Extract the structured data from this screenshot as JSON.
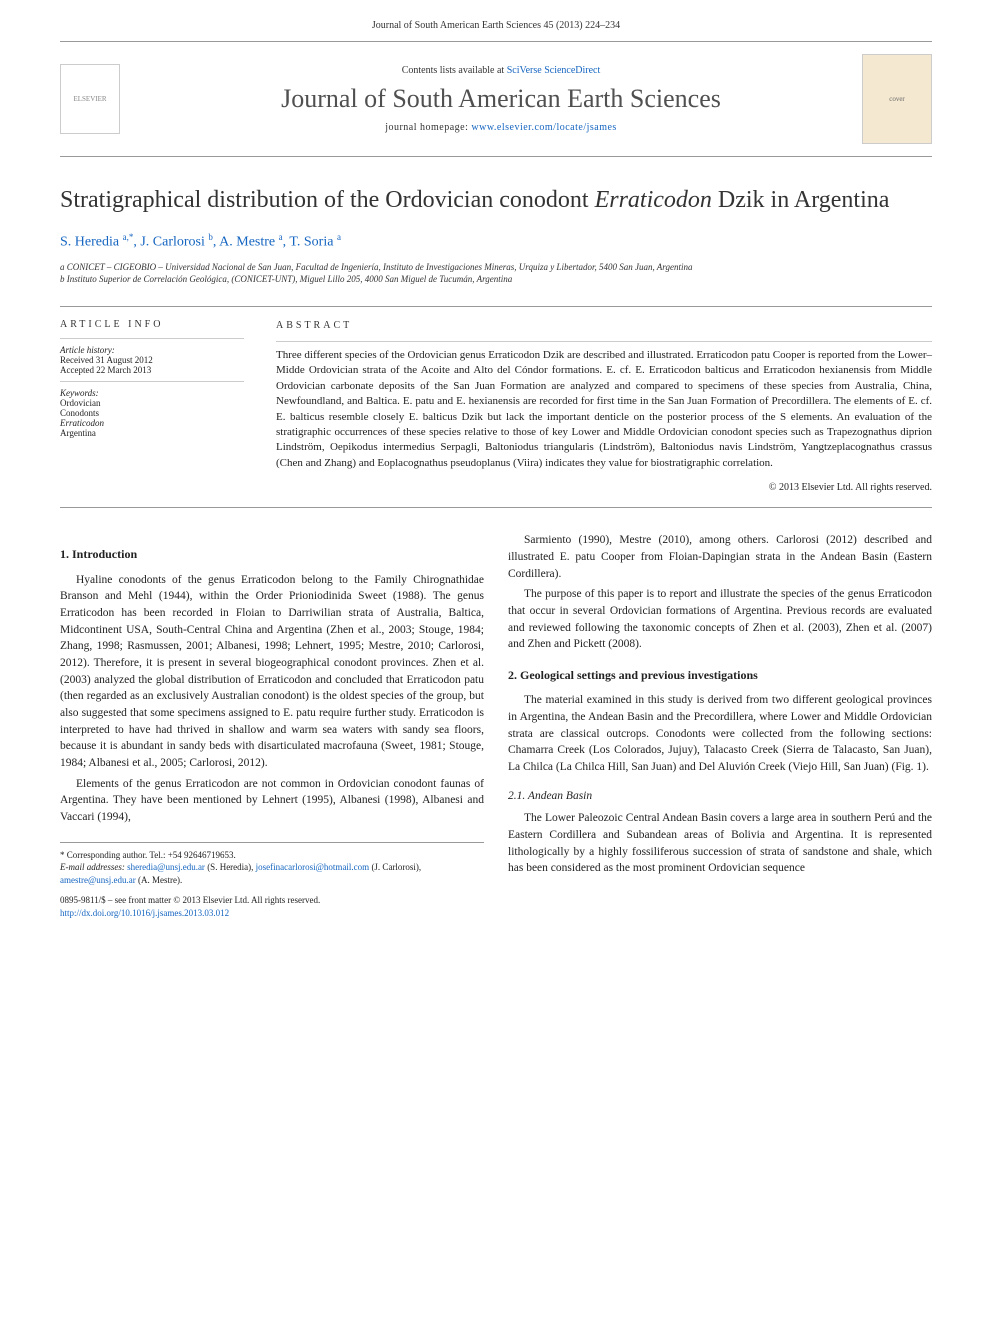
{
  "header": {
    "citation": "Journal of South American Earth Sciences 45 (2013) 224–234",
    "contents_prefix": "Contents lists available at ",
    "contents_link": "SciVerse ScienceDirect",
    "journal_title": "Journal of South American Earth Sciences",
    "homepage_prefix": "journal homepage: ",
    "homepage_url": "www.elsevier.com/locate/jsames",
    "publisher_logo_text": "ELSEVIER",
    "cover_text": "cover"
  },
  "title": {
    "pre": "Stratigraphical distribution of the Ordovician conodont ",
    "italic": "Erraticodon",
    "post": " Dzik in Argentina"
  },
  "authors_html": "S. Heredia <sup>a,*</sup>, J. Carlorosi <sup>b</sup>, A. Mestre <sup>a</sup>, T. Soria <sup>a</sup>",
  "affiliations": {
    "a": "a CONICET – CIGEOBIO – Universidad Nacional de San Juan, Facultad de Ingeniería, Instituto de Investigaciones Mineras, Urquiza y Libertador, 5400 San Juan, Argentina",
    "b": "b Instituto Superior de Correlación Geológica, (CONICET-UNT), Miguel Lillo 205, 4000 San Miguel de Tucumán, Argentina"
  },
  "article_info": {
    "label": "ARTICLE INFO",
    "history_label": "Article history:",
    "received": "Received 31 August 2012",
    "accepted": "Accepted 22 March 2013",
    "keywords_label": "Keywords:",
    "keywords": [
      "Ordovician",
      "Conodonts",
      "Erraticodon",
      "Argentina"
    ]
  },
  "abstract": {
    "label": "ABSTRACT",
    "text": "Three different species of the Ordovician genus Erraticodon Dzik are described and illustrated. Erraticodon patu Cooper is reported from the Lower–Midde Ordovician strata of the Acoite and Alto del Cóndor formations. E. cf. E. Erraticodon balticus and Erraticodon hexianensis from Middle Ordovician carbonate deposits of the San Juan Formation are analyzed and compared to specimens of these species from Australia, China, Newfoundland, and Baltica. E. patu and E. hexianensis are recorded for first time in the San Juan Formation of Precordillera. The elements of E. cf. E. balticus resemble closely E. balticus Dzik but lack the important denticle on the posterior process of the S elements. An evaluation of the stratigraphic occurrences of these species relative to those of key Lower and Middle Ordovician conodont species such as Trapezognathus diprion Lindström, Oepikodus intermedius Serpagli, Baltoniodus triangularis (Lindström), Baltoniodus navis Lindström, Yangtzeplacognathus crassus (Chen and Zhang) and Eoplacognathus pseudoplanus (Viira) indicates they value for biostratigraphic correlation.",
    "copyright": "© 2013 Elsevier Ltd. All rights reserved."
  },
  "body": {
    "intro_heading": "1. Introduction",
    "intro_p1": "Hyaline conodonts of the genus Erraticodon belong to the Family Chirognathidae Branson and Mehl (1944), within the Order Prioniodinida Sweet (1988). The genus Erraticodon has been recorded in Floian to Darriwilian strata of Australia, Baltica, Midcontinent USA, South-Central China and Argentina (Zhen et al., 2003; Stouge, 1984; Zhang, 1998; Rasmussen, 2001; Albanesi, 1998; Lehnert, 1995; Mestre, 2010; Carlorosi, 2012). Therefore, it is present in several biogeographical conodont provinces. Zhen et al. (2003) analyzed the global distribution of Erraticodon and concluded that Erraticodon patu (then regarded as an exclusively Australian conodont) is the oldest species of the group, but also suggested that some specimens assigned to E. patu require further study. Erraticodon is interpreted to have had thrived in shallow and warm sea waters with sandy sea floors, because it is abundant in sandy beds with disarticulated macrofauna (Sweet, 1981; Stouge, 1984; Albanesi et al., 2005; Carlorosi, 2012).",
    "intro_p2": "Elements of the genus Erraticodon are not common in Ordovician conodont faunas of Argentina. They have been mentioned by Lehnert (1995), Albanesi (1998), Albanesi and Vaccari (1994),",
    "col2_p1": "Sarmiento (1990), Mestre (2010), among others. Carlorosi (2012) described and illustrated E. patu Cooper from Floian-Dapingian strata in the Andean Basin (Eastern Cordillera).",
    "col2_p2": "The purpose of this paper is to report and illustrate the species of the genus Erraticodon that occur in several Ordovician formations of Argentina. Previous records are evaluated and reviewed following the taxonomic concepts of Zhen et al. (2003), Zhen et al. (2007) and Zhen and Pickett (2008).",
    "geo_heading": "2. Geological settings and previous investigations",
    "geo_p1": "The material examined in this study is derived from two different geological provinces in Argentina, the Andean Basin and the Precordillera, where Lower and Middle Ordovician strata are classical outcrops. Conodonts were collected from the following sections: Chamarra Creek (Los Colorados, Jujuy), Talacasto Creek (Sierra de Talacasto, San Juan), La Chilca (La Chilca Hill, San Juan) and Del Aluvión Creek (Viejo Hill, San Juan) (Fig. 1).",
    "andean_heading": "2.1. Andean Basin",
    "andean_p1": "The Lower Paleozoic Central Andean Basin covers a large area in southern Perú and the Eastern Cordillera and Subandean areas of Bolivia and Argentina. It is represented lithologically by a highly fossiliferous succession of strata of sandstone and shale, which has been considered as the most prominent Ordovician sequence"
  },
  "footnotes": {
    "corresponding": "* Corresponding author. Tel.: +54 92646719653.",
    "email_label": "E-mail addresses:",
    "email1": "sheredia@unsj.edu.ar",
    "email1_who": " (S. Heredia), ",
    "email2": "josefinacarlorosi@hotmail.com",
    "email2_who": " (J. Carlorosi), ",
    "email3": "amestre@unsj.edu.ar",
    "email3_who": " (A. Mestre)."
  },
  "front_matter": {
    "issn": "0895-9811/$ – see front matter © 2013 Elsevier Ltd. All rights reserved.",
    "doi": "http://dx.doi.org/10.1016/j.jsames.2013.03.012"
  },
  "colors": {
    "link": "#1565c0",
    "text": "#222222",
    "rule": "#999999"
  },
  "fonts": {
    "body_size_pt": 11.5,
    "title_size_pt": 24,
    "journal_title_size_pt": 26,
    "abstract_size_pt": 11,
    "footnote_size_pt": 9
  }
}
